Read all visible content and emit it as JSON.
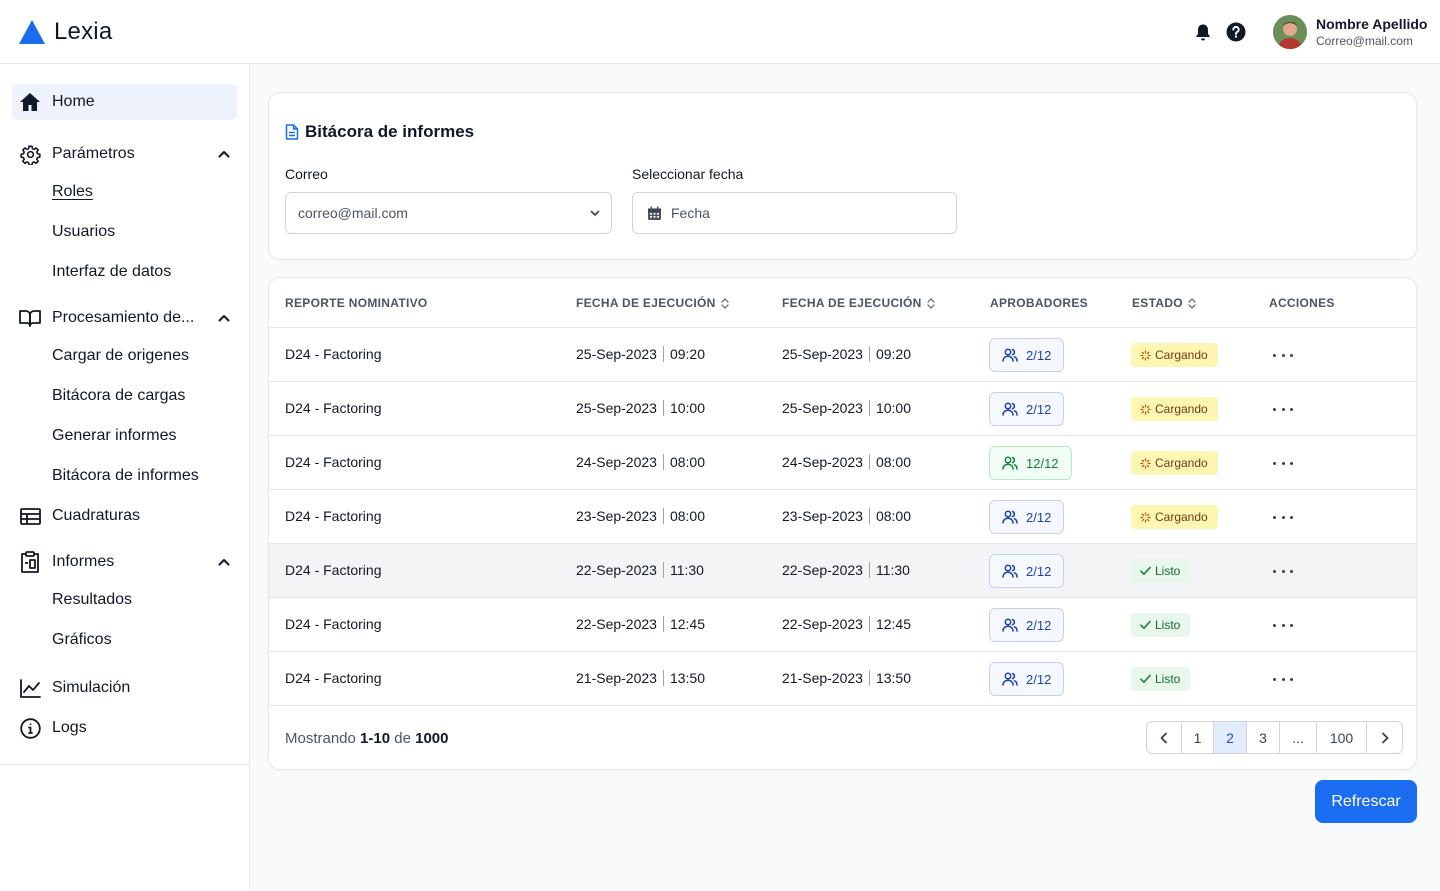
{
  "app": {
    "name": "Lexia"
  },
  "header": {
    "icons": [
      "bell-icon",
      "help-icon"
    ],
    "user": {
      "name": "Nombre Apellido",
      "email": "Correo@mail.com"
    }
  },
  "sidebar": {
    "items": [
      {
        "label": "Home",
        "icon": "home-icon",
        "active": true
      },
      {
        "label": "Parámetros",
        "icon": "gear-icon",
        "expanded": true,
        "children": [
          "Roles",
          "Usuarios",
          "Interfaz de datos"
        ]
      },
      {
        "label": "Procesamiento de...",
        "icon": "book-icon",
        "expanded": true,
        "children": [
          "Cargar de origenes",
          "Bitácora de cargas",
          "Generar informes",
          "Bitácora de informes"
        ]
      },
      {
        "label": "Cuadraturas",
        "icon": "table-icon"
      },
      {
        "label": "Informes",
        "icon": "clipboard-icon",
        "expanded": true,
        "children": [
          "Resultados",
          "Gráficos"
        ]
      },
      {
        "label": "Simulación",
        "icon": "chart-line-icon"
      },
      {
        "label": "Logs",
        "icon": "info-icon"
      }
    ]
  },
  "filters": {
    "title": "Bitácora de informes",
    "email_label": "Correo",
    "email_value": "correo@mail.com",
    "date_label": "Seleccionar fecha",
    "date_placeholder": "Fecha"
  },
  "table": {
    "columns": [
      "REPORTE NOMINATIVO",
      "FECHA DE EJECUCIÓN",
      "FECHA DE EJECUCIÓN",
      "APROBADORES",
      "ESTADO",
      "ACCIONES"
    ],
    "rows": [
      {
        "report": "D24 - Factoring",
        "date1": "25-Sep-2023",
        "time1": "09:20",
        "date2": "25-Sep-2023",
        "time2": "09:20",
        "approvers": "2/12",
        "status": "Cargando"
      },
      {
        "report": "D24 - Factoring",
        "date1": "25-Sep-2023",
        "time1": "10:00",
        "date2": "25-Sep-2023",
        "time2": "10:00",
        "approvers": "2/12",
        "status": "Cargando"
      },
      {
        "report": "D24 - Factoring",
        "date1": "24-Sep-2023",
        "time1": "08:00",
        "date2": "24-Sep-2023",
        "time2": "08:00",
        "approvers": "12/12",
        "status": "Cargando"
      },
      {
        "report": "D24 - Factoring",
        "date1": "23-Sep-2023",
        "time1": "08:00",
        "date2": "23-Sep-2023",
        "time2": "08:00",
        "approvers": "2/12",
        "status": "Cargando"
      },
      {
        "report": "D24 - Factoring",
        "date1": "22-Sep-2023",
        "time1": "11:30",
        "date2": "22-Sep-2023",
        "time2": "11:30",
        "approvers": "2/12",
        "status": "Listo"
      },
      {
        "report": "D24 - Factoring",
        "date1": "22-Sep-2023",
        "time1": "12:45",
        "date2": "22-Sep-2023",
        "time2": "12:45",
        "approvers": "2/12",
        "status": "Listo"
      },
      {
        "report": "D24 - Factoring",
        "date1": "21-Sep-2023",
        "time1": "13:50",
        "date2": "21-Sep-2023",
        "time2": "13:50",
        "approvers": "2/12",
        "status": "Listo"
      }
    ],
    "footer": {
      "prefix": "Mostrando",
      "range": "1-10",
      "middle": "de",
      "total": "1000"
    },
    "pagination": {
      "pages": [
        "1",
        "2",
        "3",
        "...",
        "100"
      ],
      "current": "2"
    }
  },
  "actions": {
    "refresh_label": "Refrescar"
  },
  "colors": {
    "primary": "#1a6cf0",
    "loading_badge": "#fdf6b2",
    "ready_badge": "#e7f7ec"
  }
}
